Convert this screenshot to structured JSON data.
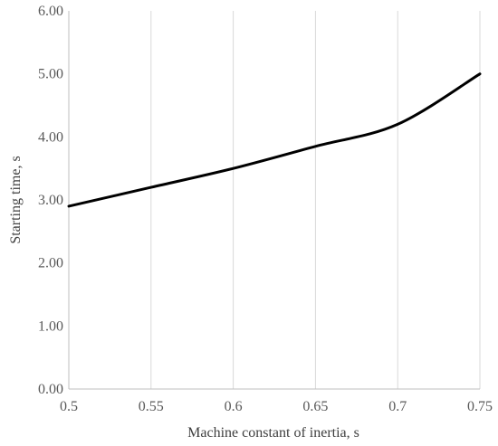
{
  "chart_data": {
    "type": "line",
    "title": "",
    "xlabel": "Machine constant of inertia, s",
    "ylabel": "Starting time, s",
    "xlim": [
      0.5,
      0.75
    ],
    "ylim": [
      0,
      6
    ],
    "x_ticks": [
      "0.5",
      "0.55",
      "0.6",
      "0.65",
      "0.7",
      "0.75"
    ],
    "x_tick_values": [
      0.5,
      0.55,
      0.6,
      0.65,
      0.7,
      0.75
    ],
    "y_ticks": [
      "0.00",
      "1.00",
      "2.00",
      "3.00",
      "4.00",
      "5.00",
      "6.00"
    ],
    "y_tick_values": [
      0,
      1,
      2,
      3,
      4,
      5,
      6
    ],
    "grid": "vertical",
    "legend": "none",
    "series": [
      {
        "color": "#000000",
        "x": [
          0.5,
          0.55,
          0.6,
          0.65,
          0.7,
          0.75
        ],
        "y": [
          2.9,
          3.2,
          3.5,
          3.85,
          4.2,
          5.0
        ]
      }
    ]
  }
}
